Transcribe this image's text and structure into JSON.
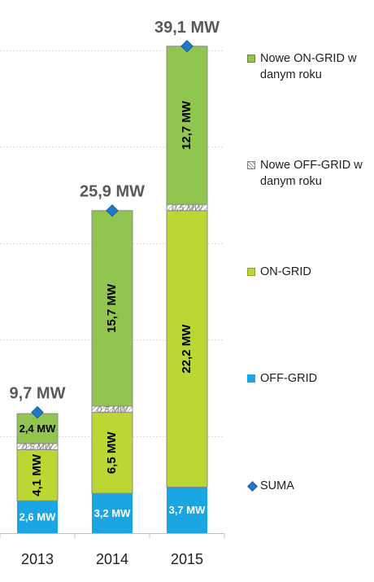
{
  "chart_data": {
    "type": "bar",
    "stacked": true,
    "categories": [
      "2013",
      "2014",
      "2015"
    ],
    "series": [
      {
        "name": "OFF-GRID",
        "key": "off",
        "values": [
          2.6,
          3.2,
          3.7
        ],
        "labels": [
          "2,6 MW",
          "3,2 MW",
          "3,7 MW"
        ],
        "color": "#1aa6e2"
      },
      {
        "name": "ON-GRID",
        "key": "on",
        "values": [
          4.1,
          6.5,
          22.2
        ],
        "labels": [
          "4,1 MW",
          "6,5 MW",
          "22,2 MW"
        ],
        "color": "#bcd633"
      },
      {
        "name": "Nowe OFF-GRID w danym roku",
        "key": "newoff",
        "values": [
          0.5,
          0.5,
          0.5
        ],
        "labels": [
          "0,5 MW",
          "0,5 MW",
          "0,5 MW"
        ],
        "color": "#bfbfbf"
      },
      {
        "name": "Nowe ON-GRID w danym roku",
        "key": "newon",
        "values": [
          2.4,
          15.7,
          12.7
        ],
        "labels": [
          "2,4 MW",
          "15,7 MW",
          "12,7 MW"
        ],
        "color": "#92c450"
      }
    ],
    "totals": {
      "name": "SUMA",
      "values": [
        9.7,
        25.9,
        39.1
      ],
      "labels": [
        "9,7 MW",
        "25,9 MW",
        "39,1 MW"
      ],
      "color": "#1f78c8"
    },
    "ylim": [
      0,
      41
    ],
    "grid": true,
    "legend_position": "right",
    "title": "",
    "xlabel": "",
    "ylabel": ""
  },
  "legend": [
    {
      "key": "newon",
      "label_line1": "Nowe ON-GRID w",
      "label_line2": "danym roku"
    },
    {
      "key": "newoff",
      "label_line1": "Nowe OFF-GRID w",
      "label_line2": "danym roku"
    },
    {
      "key": "on",
      "label_line1": "ON-GRID",
      "label_line2": ""
    },
    {
      "key": "off",
      "label_line1": "OFF-GRID",
      "label_line2": ""
    },
    {
      "key": "suma",
      "label_line1": "SUMA",
      "label_line2": ""
    }
  ]
}
